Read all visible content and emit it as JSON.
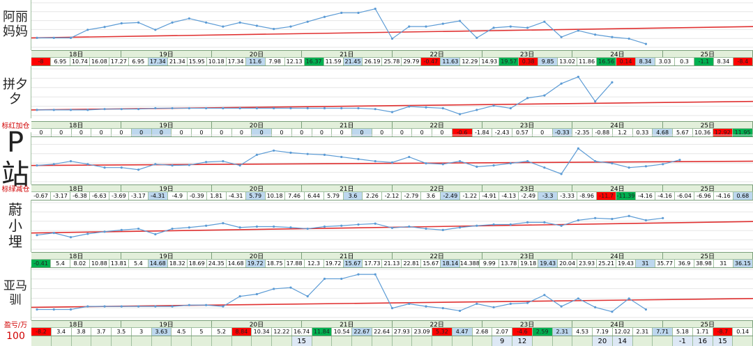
{
  "panels": [
    {
      "label": "阿丽妈妈",
      "chart_data": {
        "type": "line",
        "ylim": [
          0,
          100
        ],
        "color": "#5b9bd5",
        "values": [
          20,
          20,
          20,
          40,
          47,
          56,
          58,
          40,
          58,
          68,
          58,
          48,
          58,
          50,
          42,
          48,
          60,
          72,
          82,
          82,
          92,
          18,
          48,
          48,
          55,
          62,
          20,
          45,
          48,
          45,
          60,
          22,
          38,
          28,
          22,
          18,
          5
        ],
        "trend": {
          "values": [
            20,
            48
          ],
          "color": "#e03030"
        }
      },
      "days": [
        "18日",
        "19日",
        "20日",
        "21日",
        "22日",
        "23日",
        "24日",
        "25日"
      ],
      "cells": [
        {
          "text": "-8",
          "fill": "red"
        },
        {
          "text": "6.95"
        },
        {
          "text": "10.74"
        },
        {
          "text": "16.08"
        },
        {
          "text": "17.27"
        },
        {
          "text": "6.95"
        },
        {
          "text": "17.34",
          "fill": "blue"
        },
        {
          "text": "21.34"
        },
        {
          "text": "15.95"
        },
        {
          "text": "10.18"
        },
        {
          "text": "17.34"
        },
        {
          "text": "11.6",
          "fill": "blue"
        },
        {
          "text": "7.98"
        },
        {
          "text": "12.13"
        },
        {
          "text": "16.37",
          "fill": "green"
        },
        {
          "text": "11.59"
        },
        {
          "text": "21.45",
          "fill": "blue"
        },
        {
          "text": "26.19"
        },
        {
          "text": "25.78"
        },
        {
          "text": "29.79"
        },
        {
          "text": "-0.47",
          "fill": "red"
        },
        {
          "text": "11.63",
          "fill": "blue"
        },
        {
          "text": "12.29"
        },
        {
          "text": "14.93"
        },
        {
          "text": "19.57",
          "fill": "green"
        },
        {
          "text": "0.38",
          "fill": "red"
        },
        {
          "text": "9.85",
          "fill": "blue"
        },
        {
          "text": "13.02"
        },
        {
          "text": "11.86"
        },
        {
          "text": "16.56",
          "fill": "green"
        },
        {
          "text": "0.14",
          "fill": "red"
        },
        {
          "text": "8.34",
          "fill": "blue"
        },
        {
          "text": "3.03"
        },
        {
          "text": "0.3"
        },
        {
          "text": "-1.1",
          "fill": "green"
        },
        {
          "text": "8.34"
        },
        {
          "text": "-8.4",
          "fill": "red"
        }
      ]
    },
    {
      "label": "拼夕夕",
      "note": "标红加仓",
      "chart_data": {
        "type": "line",
        "ylim": [
          0,
          100
        ],
        "color": "#5b9bd5",
        "values": [
          10,
          10,
          10,
          10,
          12,
          12,
          12,
          14,
          14,
          14,
          14,
          14,
          14,
          14,
          14,
          14,
          14,
          14,
          14,
          14,
          12,
          5,
          18,
          16,
          14,
          0,
          10,
          20,
          14,
          38,
          44,
          72,
          88,
          30,
          75
        ],
        "trend": {
          "values": [
            10,
            30
          ],
          "color": "#e03030"
        }
      },
      "days": [
        "18日",
        "19日",
        "20日",
        "21日",
        "22日",
        "23日",
        "24日",
        "25日"
      ],
      "cells": [
        {
          "text": "0"
        },
        {
          "text": "0"
        },
        {
          "text": "0"
        },
        {
          "text": "0"
        },
        {
          "text": "0"
        },
        {
          "text": "0",
          "fill": "blue"
        },
        {
          "text": "0",
          "fill": "blue"
        },
        {
          "text": "0"
        },
        {
          "text": "0"
        },
        {
          "text": "0"
        },
        {
          "text": "0"
        },
        {
          "text": "0",
          "fill": "blue"
        },
        {
          "text": "0"
        },
        {
          "text": "0"
        },
        {
          "text": "0"
        },
        {
          "text": "0"
        },
        {
          "text": "0",
          "fill": "blue"
        },
        {
          "text": "0"
        },
        {
          "text": "0"
        },
        {
          "text": "0"
        },
        {
          "text": "0"
        },
        {
          "text": "-0.6",
          "fill": "red"
        },
        {
          "text": "-1.84"
        },
        {
          "text": "-2.43"
        },
        {
          "text": "0.57"
        },
        {
          "text": "0"
        },
        {
          "text": "-0.33",
          "fill": "blue"
        },
        {
          "text": "-2.35"
        },
        {
          "text": "-0.88"
        },
        {
          "text": "1.2"
        },
        {
          "text": "0.33"
        },
        {
          "text": "4.68",
          "fill": "blue"
        },
        {
          "text": "5.67"
        },
        {
          "text": "10.36"
        },
        {
          "text": "12.92",
          "fill": "red"
        },
        {
          "text": "11.95",
          "fill": "green"
        }
      ]
    },
    {
      "label": "P站",
      "note": "标绿减仓",
      "chart_data": {
        "type": "line",
        "ylim": [
          0,
          100
        ],
        "color": "#5b9bd5",
        "values": [
          35,
          38,
          45,
          38,
          30,
          30,
          25,
          38,
          35,
          36,
          43,
          45,
          35,
          60,
          70,
          65,
          62,
          60,
          55,
          50,
          45,
          42,
          55,
          40,
          38,
          45,
          32,
          35,
          40,
          45,
          30,
          15,
          75,
          45,
          40,
          30,
          33,
          38,
          48
        ],
        "trend": {
          "values": [
            35,
            45
          ],
          "color": "#e03030"
        }
      },
      "days": [
        "18日",
        "19日",
        "20日",
        "21日",
        "22日",
        "23日",
        "24日",
        "25日"
      ],
      "cells": [
        {
          "text": "-0.67"
        },
        {
          "text": "-3.17"
        },
        {
          "text": "-6.38"
        },
        {
          "text": "-6.63"
        },
        {
          "text": "-3.69"
        },
        {
          "text": "-3.17"
        },
        {
          "text": "-4.31",
          "fill": "blue"
        },
        {
          "text": "-4.9"
        },
        {
          "text": "-0.39"
        },
        {
          "text": "1.81"
        },
        {
          "text": "-4.31"
        },
        {
          "text": "5.79",
          "fill": "blue"
        },
        {
          "text": "10.18"
        },
        {
          "text": "7.46"
        },
        {
          "text": "6.44"
        },
        {
          "text": "5.79"
        },
        {
          "text": "3.6",
          "fill": "blue"
        },
        {
          "text": "2.26"
        },
        {
          "text": "-2.12"
        },
        {
          "text": "-2.79"
        },
        {
          "text": "3.6"
        },
        {
          "text": "-2.49",
          "fill": "blue"
        },
        {
          "text": "-1.22"
        },
        {
          "text": "-4.91"
        },
        {
          "text": "-4.13"
        },
        {
          "text": "-2.49"
        },
        {
          "text": "-3.3",
          "fill": "blue"
        },
        {
          "text": "-3.33"
        },
        {
          "text": "-8.96"
        },
        {
          "text": "-11.7",
          "fill": "red"
        },
        {
          "text": "-11.39",
          "fill": "green"
        },
        {
          "text": "-4.16"
        },
        {
          "text": "-4.16"
        },
        {
          "text": "-6.04"
        },
        {
          "text": "-6.96"
        },
        {
          "text": "-4.16"
        },
        {
          "text": "0.68",
          "fill": "blue"
        }
      ]
    },
    {
      "label": "蔚小埋",
      "chart_data": {
        "type": "line",
        "ylim": [
          0,
          100
        ],
        "color": "#5b9bd5",
        "values": [
          30,
          35,
          25,
          33,
          38,
          42,
          45,
          32,
          45,
          48,
          52,
          58,
          48,
          50,
          50,
          48,
          45,
          50,
          52,
          55,
          57,
          47,
          50,
          45,
          42,
          48,
          52,
          55,
          55,
          60,
          60,
          52,
          65,
          70,
          68,
          75,
          65,
          70
        ],
        "trend": {
          "values": [
            35,
            62
          ],
          "color": "#e03030"
        }
      },
      "days": [
        "18日",
        "19日",
        "20日",
        "21日",
        "22日",
        "23日",
        "24日",
        "25日"
      ],
      "cells": [
        {
          "text": "-0.41",
          "fill": "green"
        },
        {
          "text": "5.4"
        },
        {
          "text": "8.02"
        },
        {
          "text": "10.88"
        },
        {
          "text": "13.81"
        },
        {
          "text": "5.4"
        },
        {
          "text": "14.68",
          "fill": "blue"
        },
        {
          "text": "18.32"
        },
        {
          "text": "18.69"
        },
        {
          "text": "24.35"
        },
        {
          "text": "14.68"
        },
        {
          "text": "19.72",
          "fill": "blue"
        },
        {
          "text": "18.75"
        },
        {
          "text": "17.88"
        },
        {
          "text": "12.3"
        },
        {
          "text": "19.72"
        },
        {
          "text": "15.67",
          "fill": "blue"
        },
        {
          "text": "17.73"
        },
        {
          "text": "21.13"
        },
        {
          "text": "22.81"
        },
        {
          "text": "15.67"
        },
        {
          "text": "18.14",
          "fill": "blue"
        },
        {
          "text": "14.388"
        },
        {
          "text": "9.99"
        },
        {
          "text": "13.78"
        },
        {
          "text": "19.18"
        },
        {
          "text": "19.43",
          "fill": "blue"
        },
        {
          "text": "20.04"
        },
        {
          "text": "23.93"
        },
        {
          "text": "25.21"
        },
        {
          "text": "19.43"
        },
        {
          "text": "31",
          "fill": "blue"
        },
        {
          "text": "35.77"
        },
        {
          "text": "36.9"
        },
        {
          "text": "38.98"
        },
        {
          "text": "31"
        },
        {
          "text": "36.15",
          "fill": "blue"
        }
      ]
    },
    {
      "label": "亚马驯",
      "note": "盈亏/万",
      "note2": "100",
      "chart_data": {
        "type": "line",
        "ylim": [
          0,
          100
        ],
        "color": "#5b9bd5",
        "values": [
          15,
          15,
          15,
          22,
          22,
          22,
          22,
          22,
          22,
          25,
          25,
          22,
          45,
          50,
          62,
          65,
          45,
          85,
          85,
          95,
          95,
          18,
          28,
          22,
          18,
          12,
          28,
          20,
          28,
          30,
          48,
          22,
          40,
          20,
          10,
          40,
          15
        ],
        "trend": {
          "values": [
            20,
            40
          ],
          "color": "#e03030"
        }
      },
      "days": [
        "18日",
        "19日",
        "20日",
        "21日",
        "22日",
        "23日",
        "24日",
        "25日"
      ],
      "cells": [
        {
          "text": "-8.2",
          "fill": "red"
        },
        {
          "text": "3.4"
        },
        {
          "text": "3.8"
        },
        {
          "text": "3.7"
        },
        {
          "text": "3.5"
        },
        {
          "text": "3"
        },
        {
          "text": "3.63",
          "fill": "blue"
        },
        {
          "text": "4.5"
        },
        {
          "text": "5"
        },
        {
          "text": "5.2"
        },
        {
          "text": "8.84",
          "fill": "red"
        },
        {
          "text": "10.34"
        },
        {
          "text": "12.22"
        },
        {
          "text": "16.74"
        },
        {
          "text": "11.84",
          "fill": "green"
        },
        {
          "text": "10.54"
        },
        {
          "text": "22.67",
          "fill": "blue"
        },
        {
          "text": "22.64"
        },
        {
          "text": "27.93"
        },
        {
          "text": "23.09"
        },
        {
          "text": "5.32",
          "fill": "red"
        },
        {
          "text": "4.47",
          "fill": "blue"
        },
        {
          "text": "2.68"
        },
        {
          "text": "2.07"
        },
        {
          "text": "-4.6",
          "fill": "red"
        },
        {
          "text": "2.59",
          "fill": "green"
        },
        {
          "text": "2.31",
          "fill": "blue"
        },
        {
          "text": "4.53"
        },
        {
          "text": "7.19"
        },
        {
          "text": "12.02"
        },
        {
          "text": "2.31"
        },
        {
          "text": "7.71",
          "fill": "blue"
        },
        {
          "text": "5.18"
        },
        {
          "text": "1.71"
        },
        {
          "text": "-8.7",
          "fill": "red"
        },
        {
          "text": "0.14"
        }
      ],
      "extra": [
        null,
        null,
        null,
        null,
        null,
        null,
        null,
        null,
        null,
        null,
        null,
        null,
        null,
        "15",
        null,
        null,
        null,
        null,
        null,
        null,
        null,
        null,
        null,
        "9",
        "12",
        null,
        null,
        null,
        "20",
        "14",
        null,
        null,
        "-1",
        "16",
        "15",
        null
      ]
    }
  ]
}
